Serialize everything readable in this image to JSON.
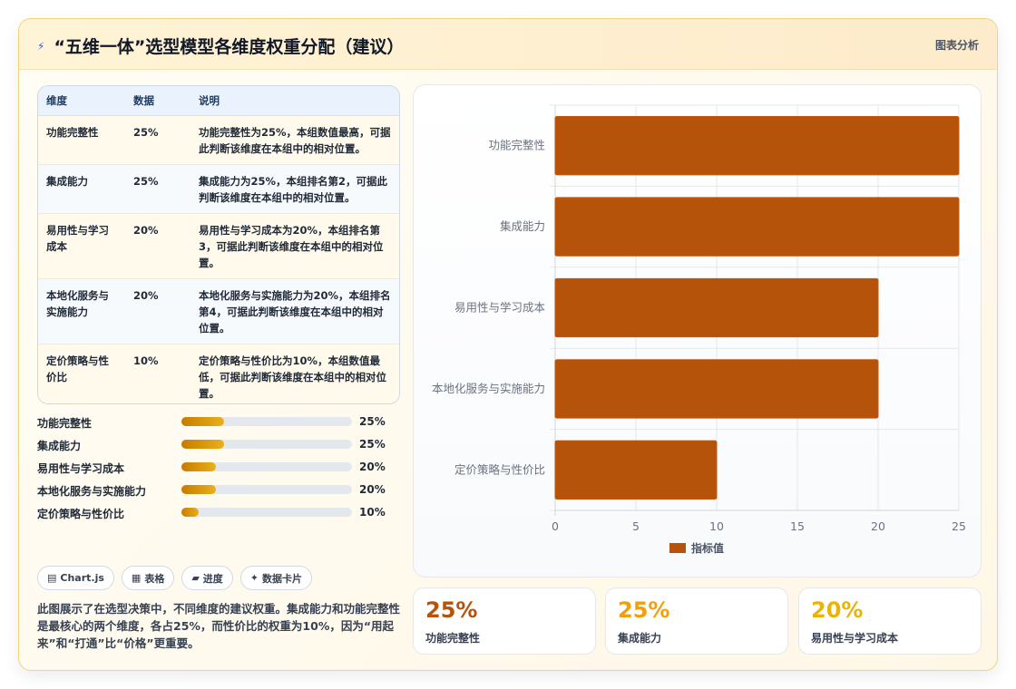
{
  "header": {
    "icon": "bolt-icon",
    "title": "“五维一体”选型模型各维度权重分配（建议）",
    "link": "图表分析"
  },
  "table": {
    "headers": [
      "维度",
      "数据",
      "说明"
    ],
    "rows": [
      {
        "dim": "功能完整性",
        "value": "25%",
        "desc": "功能完整性为25%，本组数值最高，可据此判断该维度在本组中的相对位置。"
      },
      {
        "dim": "集成能力",
        "value": "25%",
        "desc": "集成能力为25%，本组排名第2，可据此判断该维度在本组中的相对位置。"
      },
      {
        "dim": "易用性与学习成本",
        "value": "20%",
        "desc": "易用性与学习成本为20%，本组排名第3，可据此判断该维度在本组中的相对位置。"
      },
      {
        "dim": "本地化服务与实施能力",
        "value": "20%",
        "desc": "本地化服务与实施能力为20%，本组排名第4，可据此判断该维度在本组中的相对位置。"
      },
      {
        "dim": "定价策略与性价比",
        "value": "10%",
        "desc": "定价策略与性价比为10%，本组数值最低，可据此判断该维度在本组中的相对位置。"
      }
    ]
  },
  "progress": [
    {
      "label": "功能完整性",
      "value_text": "25%",
      "value": 25
    },
    {
      "label": "集成能力",
      "value_text": "25%",
      "value": 25
    },
    {
      "label": "易用性与学习成本",
      "value_text": "20%",
      "value": 20
    },
    {
      "label": "本地化服务与实施能力",
      "value_text": "20%",
      "value": 20
    },
    {
      "label": "定价策略与性价比",
      "value_text": "10%",
      "value": 10
    }
  ],
  "progress_max": 100,
  "pills": [
    {
      "icon": "chart-icon",
      "label": "Chart.js"
    },
    {
      "icon": "table-icon",
      "label": "表格"
    },
    {
      "icon": "progress-icon",
      "label": "进度"
    },
    {
      "icon": "sparkle-icon",
      "label": "数据卡片"
    }
  ],
  "description": "此图展示了在选型决策中，不同维度的建议权重。集成能力和功能完整性是最核心的两个维度，各占25%，而性价比的权重为10%，因为“用起来”和“打通”比“价格”更重要。",
  "stats": [
    {
      "value": "25%",
      "label": "功能完整性",
      "color": "#b45309"
    },
    {
      "value": "25%",
      "label": "集成能力",
      "color": "#f59e0b"
    },
    {
      "value": "20%",
      "label": "易用性与学习成本",
      "color": "#eab308"
    }
  ],
  "chart_data": {
    "type": "bar",
    "orientation": "horizontal",
    "categories": [
      "功能完整性",
      "集成能力",
      "易用性与学习成本",
      "本地化服务与实施能力",
      "定价策略与性价比"
    ],
    "series": [
      {
        "name": "指标值",
        "values": [
          25,
          25,
          20,
          20,
          10
        ],
        "color": "#b45309"
      }
    ],
    "xlim": [
      0,
      25
    ],
    "xticks": [
      0,
      5,
      10,
      15,
      20,
      25
    ],
    "grid": true,
    "legend": "bottom",
    "title": "",
    "xlabel": "",
    "ylabel": ""
  }
}
